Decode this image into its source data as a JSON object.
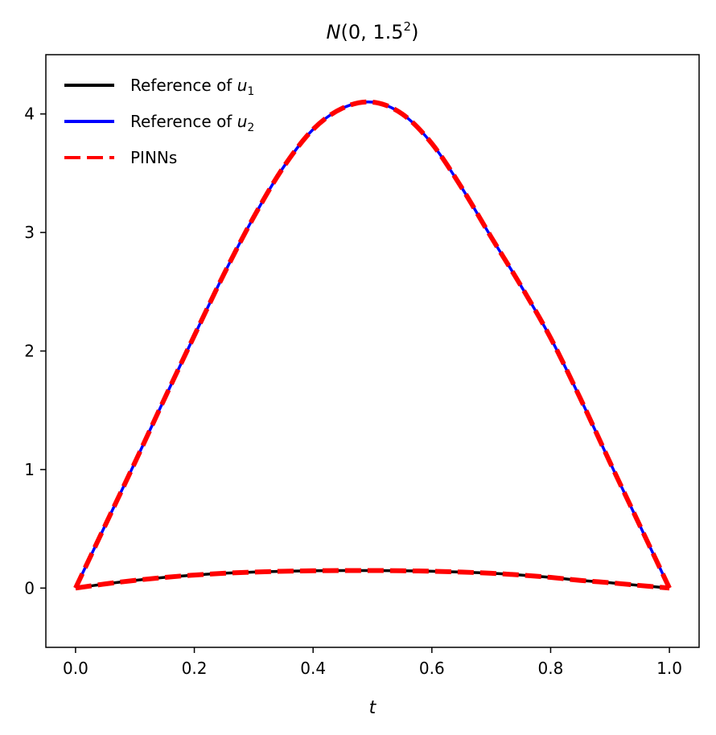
{
  "chart_data": {
    "type": "line",
    "title": {
      "main": "N",
      "open": "(0, 1.5",
      "sup": "2",
      "close": ")"
    },
    "xlabel": "t",
    "ylabel": "",
    "xlim": [
      -0.05,
      1.05
    ],
    "ylim": [
      -0.5,
      4.5
    ],
    "xticks": [
      {
        "value": 0.0,
        "label": "0.0"
      },
      {
        "value": 0.2,
        "label": "0.2"
      },
      {
        "value": 0.4,
        "label": "0.4"
      },
      {
        "value": 0.6,
        "label": "0.6"
      },
      {
        "value": 0.8,
        "label": "0.8"
      },
      {
        "value": 1.0,
        "label": "1.0"
      }
    ],
    "yticks": [
      {
        "value": 0,
        "label": "0"
      },
      {
        "value": 1,
        "label": "1"
      },
      {
        "value": 2,
        "label": "2"
      },
      {
        "value": 3,
        "label": "3"
      },
      {
        "value": 4,
        "label": "4"
      }
    ],
    "grid": false,
    "legend_position": "top-left",
    "x": [
      0.0,
      0.05,
      0.1,
      0.15,
      0.2,
      0.25,
      0.3,
      0.35,
      0.4,
      0.45,
      0.5,
      0.55,
      0.6,
      0.65,
      0.7,
      0.75,
      0.8,
      0.85,
      0.9,
      0.95,
      1.0
    ],
    "series": [
      {
        "id": "ref_u1",
        "name_text": "Reference of ",
        "name_var": "u",
        "name_sub": "1",
        "color": "#000000",
        "style": "solid",
        "values": [
          0.0,
          0.035,
          0.065,
          0.09,
          0.11,
          0.125,
          0.135,
          0.142,
          0.146,
          0.148,
          0.148,
          0.146,
          0.142,
          0.135,
          0.125,
          0.11,
          0.09,
          0.065,
          0.045,
          0.022,
          0.0
        ]
      },
      {
        "id": "ref_u2",
        "name_text": "Reference of ",
        "name_var": "u",
        "name_sub": "2",
        "color": "#0000ff",
        "style": "solid",
        "values": [
          0.0,
          0.53,
          1.06,
          1.6,
          2.13,
          2.65,
          3.13,
          3.55,
          3.87,
          4.05,
          4.1,
          4.0,
          3.75,
          3.38,
          2.96,
          2.55,
          2.11,
          1.6,
          1.06,
          0.53,
          0.0
        ]
      },
      {
        "id": "pinns_u1",
        "name_text": "PINNs",
        "color": "#ff0000",
        "style": "dashed",
        "values": [
          0.0,
          0.035,
          0.065,
          0.09,
          0.11,
          0.125,
          0.135,
          0.142,
          0.146,
          0.148,
          0.148,
          0.146,
          0.142,
          0.135,
          0.125,
          0.11,
          0.09,
          0.065,
          0.045,
          0.022,
          0.0
        ]
      },
      {
        "id": "pinns_u2",
        "name_text": "",
        "color": "#ff0000",
        "style": "dashed",
        "values": [
          0.0,
          0.53,
          1.06,
          1.6,
          2.13,
          2.65,
          3.13,
          3.55,
          3.87,
          4.05,
          4.1,
          4.0,
          3.75,
          3.38,
          2.96,
          2.55,
          2.11,
          1.6,
          1.06,
          0.53,
          0.0
        ]
      }
    ],
    "legend": [
      {
        "text": "Reference of ",
        "var": "u",
        "sub": "1",
        "color": "#000000",
        "style": "solid"
      },
      {
        "text": "Reference of ",
        "var": "u",
        "sub": "2",
        "color": "#0000ff",
        "style": "solid"
      },
      {
        "text": "PINNs",
        "var": "",
        "sub": "",
        "color": "#ff0000",
        "style": "dashed"
      }
    ]
  }
}
